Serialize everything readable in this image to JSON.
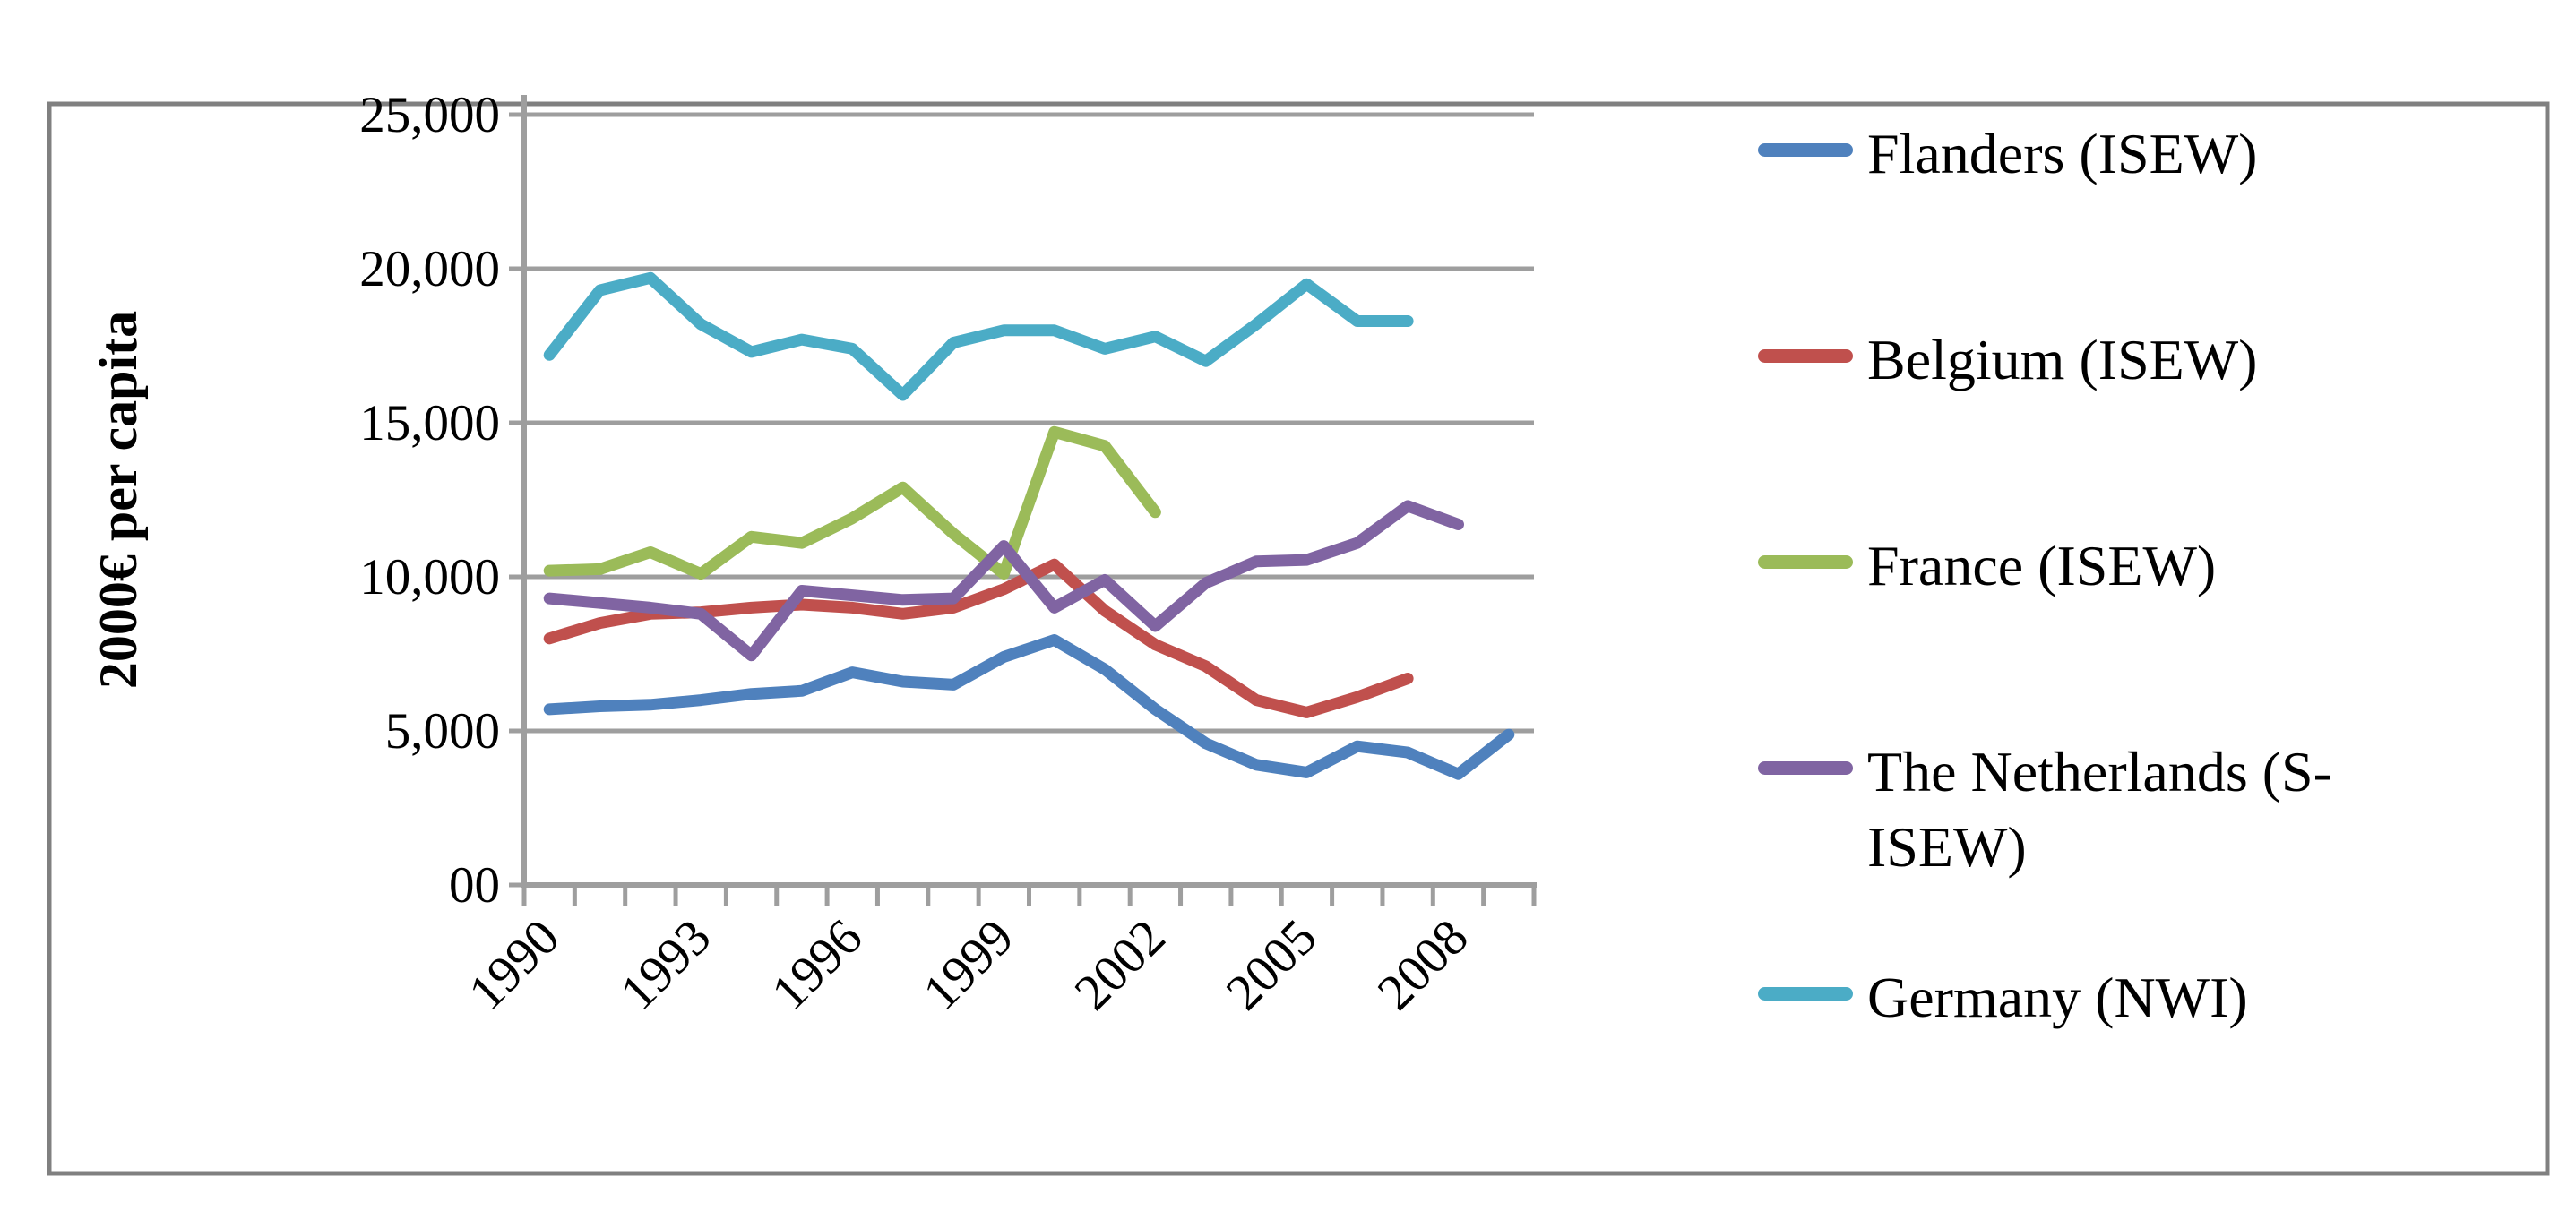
{
  "background_color": "#FFFFFF",
  "frame_color": "#808080",
  "gridline_color": "#9E9E9E",
  "text_color": "#000000",
  "chart_data": {
    "type": "line",
    "title": "",
    "xlabel": "",
    "ylabel": "2000€ per capita",
    "ylim": [
      0,
      25000
    ],
    "grid": "horizontal",
    "legend_position": "right",
    "x": [
      1990,
      1991,
      1992,
      1993,
      1994,
      1995,
      1996,
      1997,
      1998,
      1999,
      2000,
      2001,
      2002,
      2003,
      2004,
      2005,
      2006,
      2007,
      2008,
      2009
    ],
    "x_tick_labels": [
      "1990",
      "1993",
      "1996",
      "1999",
      "2002",
      "2005",
      "2008"
    ],
    "x_tick_years": [
      1990,
      1993,
      1996,
      1999,
      2002,
      2005,
      2008
    ],
    "y_ticks": [
      {
        "value": 0,
        "label": "00"
      },
      {
        "value": 5000,
        "label": "5,000"
      },
      {
        "value": 10000,
        "label": "10,000"
      },
      {
        "value": 15000,
        "label": "15,000"
      },
      {
        "value": 20000,
        "label": "20,000"
      },
      {
        "value": 25000,
        "label": "25,000"
      }
    ],
    "series": [
      {
        "id": "flanders",
        "name": "Flanders (ISEW)",
        "color": "#4F81BD",
        "values": [
          5700,
          5800,
          5850,
          6000,
          6200,
          6300,
          6900,
          6600,
          6500,
          7400,
          7950,
          7000,
          5700,
          4600,
          3900,
          3650,
          4500,
          4300,
          3600,
          4880
        ]
      },
      {
        "id": "belgium",
        "name": "Belgium (ISEW)",
        "color": "#C0504D",
        "values": [
          8000,
          8500,
          8800,
          8850,
          9000,
          9100,
          9000,
          8800,
          9000,
          9600,
          10400,
          8900,
          7800,
          7100,
          6000,
          5600,
          6100,
          6700,
          null,
          null
        ]
      },
      {
        "id": "france",
        "name": "France (ISEW)",
        "color": "#9BBB59",
        "values": [
          10200,
          10250,
          10800,
          10100,
          11300,
          11100,
          11900,
          12900,
          11400,
          10100,
          14700,
          14250,
          12100,
          null,
          null,
          null,
          null,
          null,
          null,
          null
        ]
      },
      {
        "id": "netherlands",
        "name": "The Netherlands (S-ISEW)",
        "color": "#8064A2",
        "values": [
          9300,
          9150,
          9000,
          8800,
          7450,
          9550,
          9400,
          9250,
          9300,
          11000,
          9000,
          9900,
          8400,
          9800,
          10500,
          10550,
          11100,
          12300,
          11700,
          null
        ]
      },
      {
        "id": "germany",
        "name": "Germany (NWI)",
        "color": "#4BACC6",
        "values": [
          17200,
          19300,
          19700,
          18200,
          17300,
          17700,
          17400,
          15900,
          17600,
          18000,
          18000,
          17400,
          17800,
          17000,
          18200,
          19500,
          18300,
          18300,
          null,
          null
        ]
      }
    ]
  }
}
